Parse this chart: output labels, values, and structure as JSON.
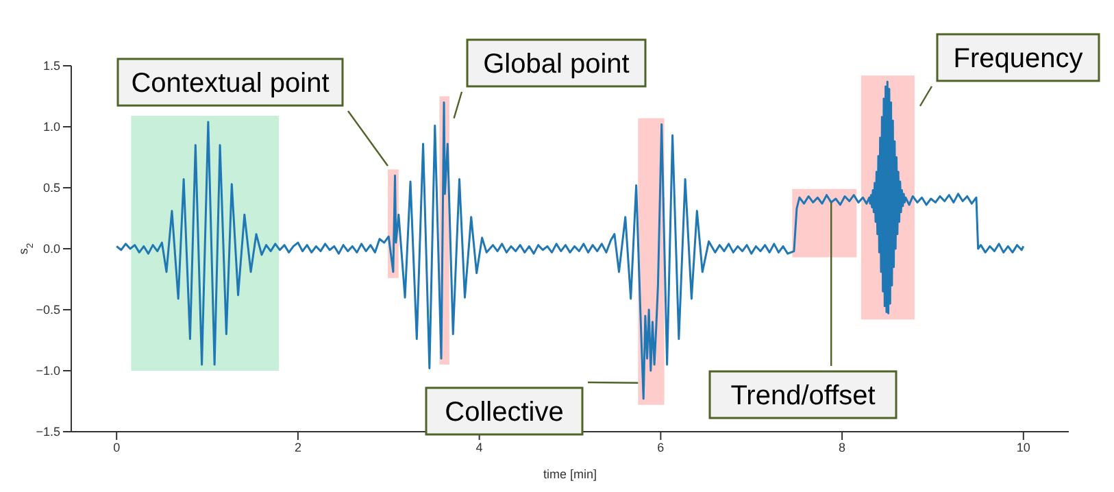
{
  "chart_data": {
    "type": "line",
    "xlabel": "time [min]",
    "ylabel": "s$_{2}$",
    "xlim": [
      -0.5,
      10.5
    ],
    "xticks": [
      0,
      2,
      4,
      6,
      8,
      10
    ],
    "ylim": [
      -1.5,
      1.5
    ],
    "yticks": [
      {
        "value": -1.5,
        "label": "−1.5"
      },
      {
        "value": -1.0,
        "label": "−1.0"
      },
      {
        "value": -0.5,
        "label": "−0.5"
      },
      {
        "value": 0,
        "label": "0.0"
      },
      0.5,
      {
        "value": 1.0,
        "label": "1.0"
      },
      1.5
    ],
    "marker": "none",
    "line_style": "solid",
    "series": [
      {
        "color": "#1f77b4",
        "x": [
          0,
          0.05,
          0.1,
          0.15,
          0.2,
          0.25,
          0.3,
          0.35,
          0.4,
          0.45,
          0.5,
          0.55,
          0.61,
          0.68,
          0.74,
          0.81,
          0.87,
          0.94,
          1.01,
          1.08,
          1.14,
          1.21,
          1.27,
          1.34,
          1.41,
          1.48,
          1.54,
          1.6,
          1.65,
          1.7,
          1.75,
          1.8,
          1.85,
          1.9,
          1.95,
          2.0,
          2.05,
          2.1,
          2.15,
          2.2,
          2.25,
          2.3,
          2.35,
          2.4,
          2.45,
          2.5,
          2.55,
          2.6,
          2.65,
          2.7,
          2.75,
          2.8,
          2.85,
          2.9,
          2.95,
          3.0,
          3.05,
          3.07,
          3.08,
          3.11,
          3.18,
          3.24,
          3.31,
          3.38,
          3.45,
          3.51,
          3.58,
          3.61,
          3.62,
          3.65,
          3.71,
          3.78,
          3.84,
          3.91,
          3.97,
          4.03,
          4.08,
          4.15,
          4.2,
          4.25,
          4.3,
          4.35,
          4.4,
          4.45,
          4.5,
          4.55,
          4.6,
          4.65,
          4.7,
          4.75,
          4.8,
          4.85,
          4.9,
          4.95,
          5.0,
          5.05,
          5.1,
          5.15,
          5.2,
          5.25,
          5.3,
          5.35,
          5.4,
          5.45,
          5.49,
          5.54,
          5.61,
          5.67,
          5.73,
          5.78,
          5.81,
          5.83,
          5.85,
          5.87,
          5.89,
          5.91,
          5.93,
          5.95,
          5.97,
          6.01,
          6.07,
          6.13,
          6.2,
          6.27,
          6.34,
          6.4,
          6.46,
          6.53,
          6.6,
          6.65,
          6.7,
          6.75,
          6.8,
          6.85,
          6.9,
          6.95,
          7.0,
          7.05,
          7.1,
          7.15,
          7.2,
          7.25,
          7.3,
          7.35,
          7.4,
          7.47,
          7.5,
          7.53,
          7.58,
          7.63,
          7.68,
          7.73,
          7.78,
          7.83,
          7.88,
          7.93,
          7.98,
          8.03,
          8.08,
          8.13,
          8.18,
          8.23,
          8.27,
          8.3,
          8.31,
          8.32,
          8.33,
          8.34,
          8.35,
          8.36,
          8.37,
          8.38,
          8.39,
          8.4,
          8.41,
          8.42,
          8.43,
          8.44,
          8.45,
          8.46,
          8.47,
          8.48,
          8.49,
          8.5,
          8.51,
          8.52,
          8.53,
          8.54,
          8.55,
          8.56,
          8.57,
          8.58,
          8.59,
          8.6,
          8.61,
          8.62,
          8.63,
          8.64,
          8.65,
          8.66,
          8.67,
          8.68,
          8.69,
          8.7,
          8.74,
          8.78,
          8.83,
          8.88,
          8.93,
          8.98,
          9.03,
          9.08,
          9.13,
          9.18,
          9.23,
          9.28,
          9.33,
          9.38,
          9.43,
          9.48,
          9.5,
          9.53,
          9.58,
          9.63,
          9.68,
          9.73,
          9.78,
          9.83,
          9.88,
          9.93,
          9.98,
          10.0
        ],
        "values": [
          0.02,
          -0.01,
          0.04,
          0.0,
          0.03,
          -0.03,
          0.02,
          -0.04,
          0.03,
          -0.02,
          0.05,
          -0.19,
          0.31,
          -0.41,
          0.57,
          -0.74,
          0.85,
          -0.95,
          1.04,
          -0.95,
          0.85,
          -0.7,
          0.53,
          -0.38,
          0.28,
          -0.19,
          0.12,
          -0.05,
          0.03,
          -0.02,
          0.04,
          -0.01,
          0.03,
          -0.03,
          0.02,
          0.05,
          -0.02,
          0.03,
          -0.03,
          0.02,
          -0.02,
          0.04,
          -0.01,
          0.02,
          -0.04,
          0.03,
          -0.02,
          0.02,
          -0.03,
          0.04,
          -0.02,
          0.03,
          -0.03,
          0.08,
          0.05,
          0.1,
          -0.19,
          0.6,
          0.05,
          0.28,
          -0.4,
          0.55,
          -0.74,
          0.86,
          -0.98,
          1.01,
          -0.9,
          1.2,
          0.45,
          0.86,
          -0.7,
          0.57,
          -0.4,
          0.26,
          -0.2,
          0.09,
          -0.03,
          0.03,
          -0.02,
          0.04,
          -0.03,
          0.02,
          -0.02,
          0.03,
          -0.03,
          0.02,
          -0.04,
          0.03,
          -0.01,
          0.02,
          -0.03,
          0.04,
          -0.02,
          0.03,
          -0.03,
          0.02,
          -0.02,
          0.04,
          -0.03,
          0.03,
          -0.02,
          0.04,
          -0.03,
          0.07,
          0.12,
          -0.19,
          0.26,
          -0.41,
          0.52,
          -0.6,
          -1.23,
          -0.55,
          -0.9,
          -0.5,
          -1.0,
          -0.6,
          -0.95,
          -0.65,
          -0.3,
          1.02,
          -0.95,
          0.93,
          -0.74,
          0.57,
          -0.41,
          0.31,
          -0.19,
          0.06,
          -0.03,
          0.03,
          -0.02,
          0.04,
          -0.03,
          0.02,
          -0.02,
          0.03,
          -0.04,
          0.02,
          -0.02,
          0.03,
          -0.03,
          0.04,
          -0.03,
          0.02,
          -0.04,
          -0.02,
          0.33,
          0.42,
          0.37,
          0.43,
          0.38,
          0.42,
          0.37,
          0.44,
          0.38,
          0.41,
          0.36,
          0.43,
          0.39,
          0.44,
          0.38,
          0.42,
          0.37,
          0.42,
          0.37,
          0.44,
          0.34,
          0.48,
          0.3,
          0.54,
          0.22,
          0.63,
          0.12,
          0.76,
          -0.03,
          0.91,
          -0.19,
          1.08,
          -0.35,
          1.23,
          -0.47,
          1.33,
          -0.52,
          1.37,
          -0.53,
          1.31,
          -0.45,
          1.2,
          -0.3,
          1.05,
          -0.15,
          0.88,
          0.0,
          0.75,
          0.12,
          0.63,
          0.22,
          0.55,
          0.3,
          0.48,
          0.35,
          0.45,
          0.38,
          0.42,
          0.36,
          0.43,
          0.38,
          0.42,
          0.36,
          0.41,
          0.38,
          0.43,
          0.39,
          0.44,
          0.38,
          0.45,
          0.39,
          0.43,
          0.37,
          0.42,
          0.0,
          0.03,
          -0.03,
          0.02,
          -0.02,
          0.04,
          -0.03,
          0.02,
          -0.03,
          0.03,
          -0.01,
          0.02
        ]
      }
    ],
    "bands": [
      {
        "axis": "x",
        "from": 0.16,
        "to": 1.79,
        "color": "#8fdfb3"
      },
      {
        "axis": "x",
        "from": 2.99,
        "to": 3.11,
        "color": "#ff9999"
      },
      {
        "axis": "x",
        "from": 3.56,
        "to": 3.67,
        "color": "#ff9999"
      },
      {
        "axis": "x",
        "from": 5.75,
        "to": 6.04,
        "color": "#ff9999"
      },
      {
        "axis": "x",
        "from": 7.45,
        "to": 8.16,
        "color": "#ff9999"
      },
      {
        "axis": "x",
        "from": 8.21,
        "to": 8.8,
        "color": "#ff9999"
      }
    ],
    "annotations": [
      {
        "text": "Contextual point",
        "x": 2.99,
        "y": 0.68
      },
      {
        "text": "Global point",
        "x": 3.72,
        "y": 1.07
      },
      {
        "text": "Collective",
        "x": 5.75,
        "y": -1.1
      },
      {
        "text": "Trend/offset",
        "x": 7.88,
        "y": 0.38
      },
      {
        "text": "Frequency",
        "x": 8.86,
        "y": 1.17
      }
    ]
  }
}
